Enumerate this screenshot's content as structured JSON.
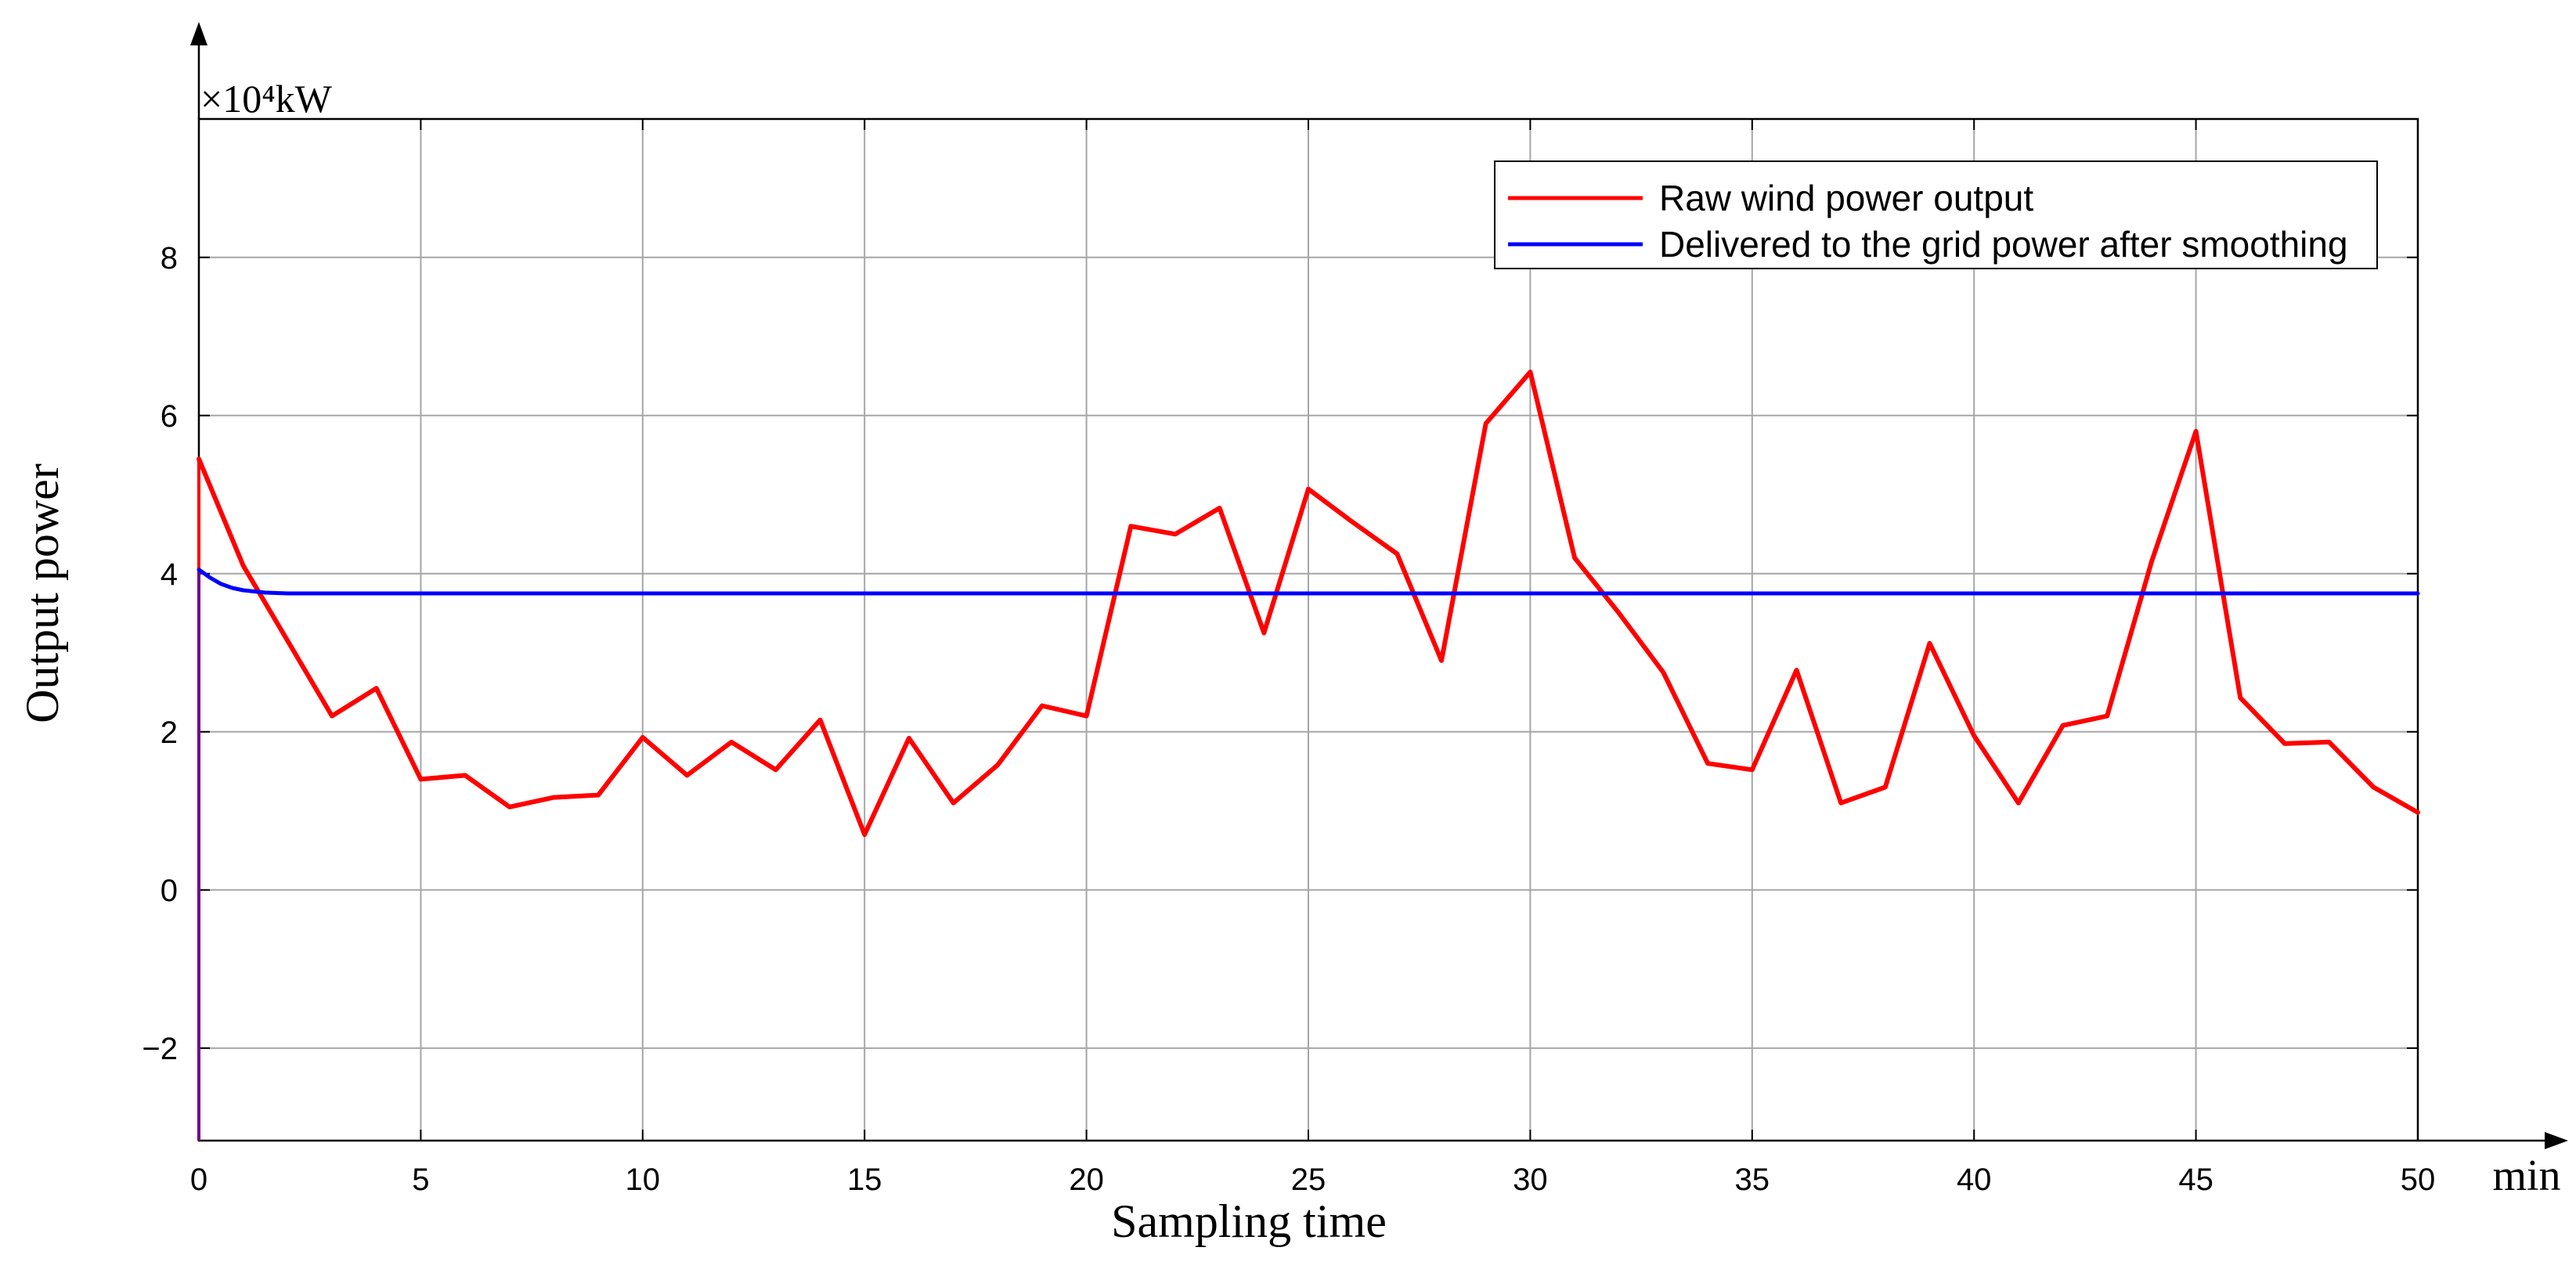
{
  "chart_data": {
    "type": "line",
    "xlabel": "Sampling time",
    "ylabel": "Output power",
    "x_unit": "min",
    "y_unit": "×10⁴kW",
    "xlim": [
      0,
      50
    ],
    "ylim": [
      -3.17,
      9.75
    ],
    "xticks": [
      0,
      5,
      10,
      15,
      20,
      25,
      30,
      35,
      40,
      45,
      50
    ],
    "yticks": [
      -2,
      0,
      2,
      4,
      6,
      8
    ],
    "ytick_labels": [
      "−2",
      "0",
      "2",
      "4",
      "6",
      "8"
    ],
    "grid": true,
    "legend_position": "top-right",
    "series": [
      {
        "name": "Raw wind power output",
        "color": "#ff0000",
        "x": [
          0,
          1,
          2,
          3,
          4,
          5,
          6,
          7,
          8,
          9,
          10,
          11,
          12,
          13,
          14,
          15,
          16,
          17,
          18,
          19,
          20,
          21,
          22,
          23,
          24,
          25,
          26,
          27,
          28,
          29,
          30,
          31,
          32,
          33,
          34,
          35,
          36,
          37,
          38,
          39,
          40,
          41,
          42,
          43,
          44,
          45,
          46,
          47,
          48,
          49,
          50
        ],
        "values": [
          5.45,
          4.1,
          3.15,
          2.2,
          2.55,
          1.4,
          1.45,
          1.05,
          1.17,
          1.2,
          1.93,
          1.45,
          1.87,
          1.52,
          2.15,
          0.7,
          1.92,
          1.1,
          1.58,
          2.33,
          2.2,
          4.6,
          4.5,
          4.83,
          3.25,
          5.07,
          4.65,
          4.25,
          2.9,
          5.9,
          6.55,
          4.2,
          3.5,
          2.75,
          1.6,
          1.52,
          2.78,
          1.1,
          1.3,
          3.12,
          1.95,
          1.1,
          2.08,
          2.2,
          4.15,
          5.8,
          2.43,
          1.85,
          1.87,
          1.3,
          0.98
        ]
      },
      {
        "name": "Delivered to the grid power after smoothing",
        "color": "#0000ff",
        "x": [
          0,
          0.25,
          0.5,
          0.75,
          1,
          1.5,
          2,
          3,
          50
        ],
        "values": [
          4.05,
          3.95,
          3.87,
          3.82,
          3.79,
          3.76,
          3.75,
          3.75,
          3.75
        ]
      }
    ]
  }
}
